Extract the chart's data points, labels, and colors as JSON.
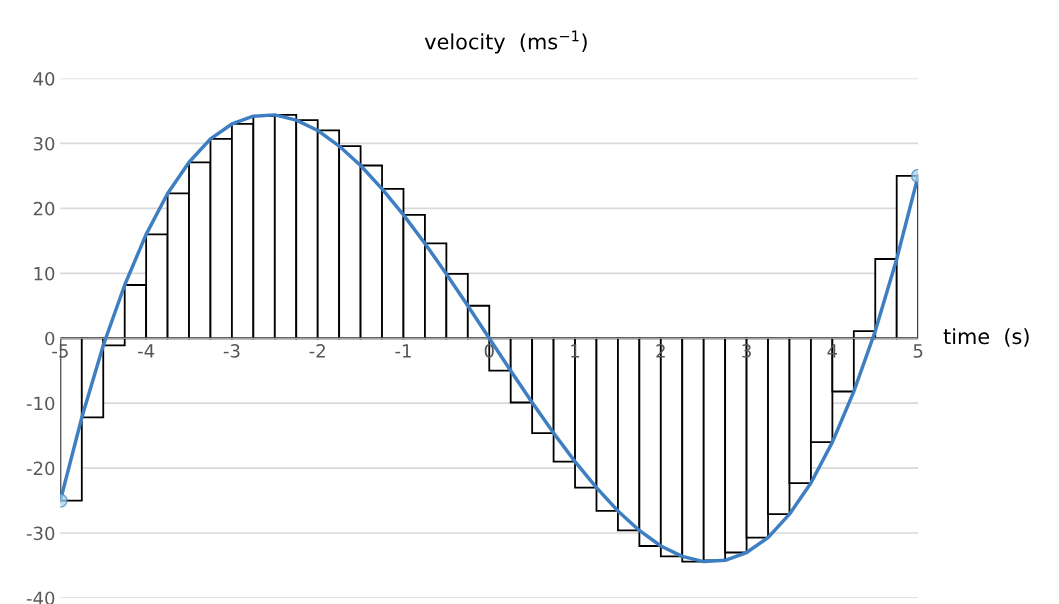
{
  "chart_data": {
    "type": "bar",
    "xlabel": "time  (s)",
    "ylabel": "velocity  (ms$^{−1}$)",
    "xlim": [
      -5,
      5
    ],
    "xticks": [
      -5,
      -4,
      -3,
      -2,
      -1,
      0,
      1,
      2,
      3,
      4,
      5
    ],
    "ylim": [
      -40,
      40
    ],
    "yticks": [
      -40,
      -30,
      -20,
      -10,
      0,
      10,
      20,
      30,
      40
    ],
    "grid": "y",
    "series": [
      {
        "color": "#000000",
        "x": [
          -4.875,
          -4.625,
          -4.375,
          -4.125,
          -3.875,
          -3.625,
          -3.375,
          -3.125,
          -2.875,
          -2.625,
          -2.375,
          -2.125,
          -1.875,
          -1.625,
          -1.375,
          -1.125,
          -0.875,
          -0.625,
          -0.375,
          -0.125,
          0.125,
          0.375,
          0.625,
          0.875,
          1.125,
          1.375,
          1.625,
          1.875,
          2.125,
          2.375,
          2.625,
          2.875,
          3.125,
          3.375,
          3.625,
          3.875,
          4.125,
          4.375,
          4.625,
          4.875
        ],
        "values": [
          -25,
          -12.2,
          -1.1,
          8.2,
          16,
          22.3,
          27.1,
          30.7,
          33,
          34.2,
          34.4,
          33.6,
          32,
          29.6,
          26.6,
          23,
          19,
          14.6,
          9.9,
          5,
          -5,
          -9.9,
          -14.6,
          -19,
          -23,
          -26.6,
          -29.6,
          -32,
          -33.6,
          -34.4,
          -34.2,
          -33,
          -30.7,
          -27.1,
          -22.3,
          -16,
          -8.2,
          1.1,
          12.2,
          25
        ]
      },
      {
        "type": "line",
        "color": "#3d7fc2",
        "marker": "none",
        "x": [
          -5,
          -4.75,
          -4.5,
          -4.25,
          -4,
          -3.75,
          -3.5,
          -3.25,
          -3,
          -2.75,
          -2.5,
          -2.25,
          -2,
          -1.75,
          -1.5,
          -1.25,
          -1,
          -0.75,
          -0.5,
          -0.25,
          0,
          0.25,
          0.5,
          0.75,
          1,
          1.25,
          1.5,
          1.75,
          2,
          2.25,
          2.5,
          2.75,
          3,
          3.25,
          3.5,
          3.75,
          4,
          4.25,
          4.5,
          4.75,
          5
        ],
        "values": [
          -25,
          -12.2,
          -1.1,
          8.2,
          16,
          22.3,
          27.1,
          30.7,
          33,
          34.2,
          34.4,
          33.6,
          32,
          29.6,
          26.6,
          23,
          19,
          14.6,
          9.9,
          5,
          0,
          -5,
          -9.9,
          -14.6,
          -19,
          -23,
          -26.6,
          -29.6,
          -32,
          -33.6,
          -34.4,
          -34.2,
          -33,
          -30.7,
          -27.1,
          -22.3,
          -16,
          -8.2,
          1.1,
          12.2,
          25
        ]
      },
      {
        "type": "scatter",
        "color": "#9fd3e8",
        "marker": "circle",
        "x": [
          -5,
          5
        ],
        "values": [
          -25,
          25
        ]
      }
    ]
  }
}
